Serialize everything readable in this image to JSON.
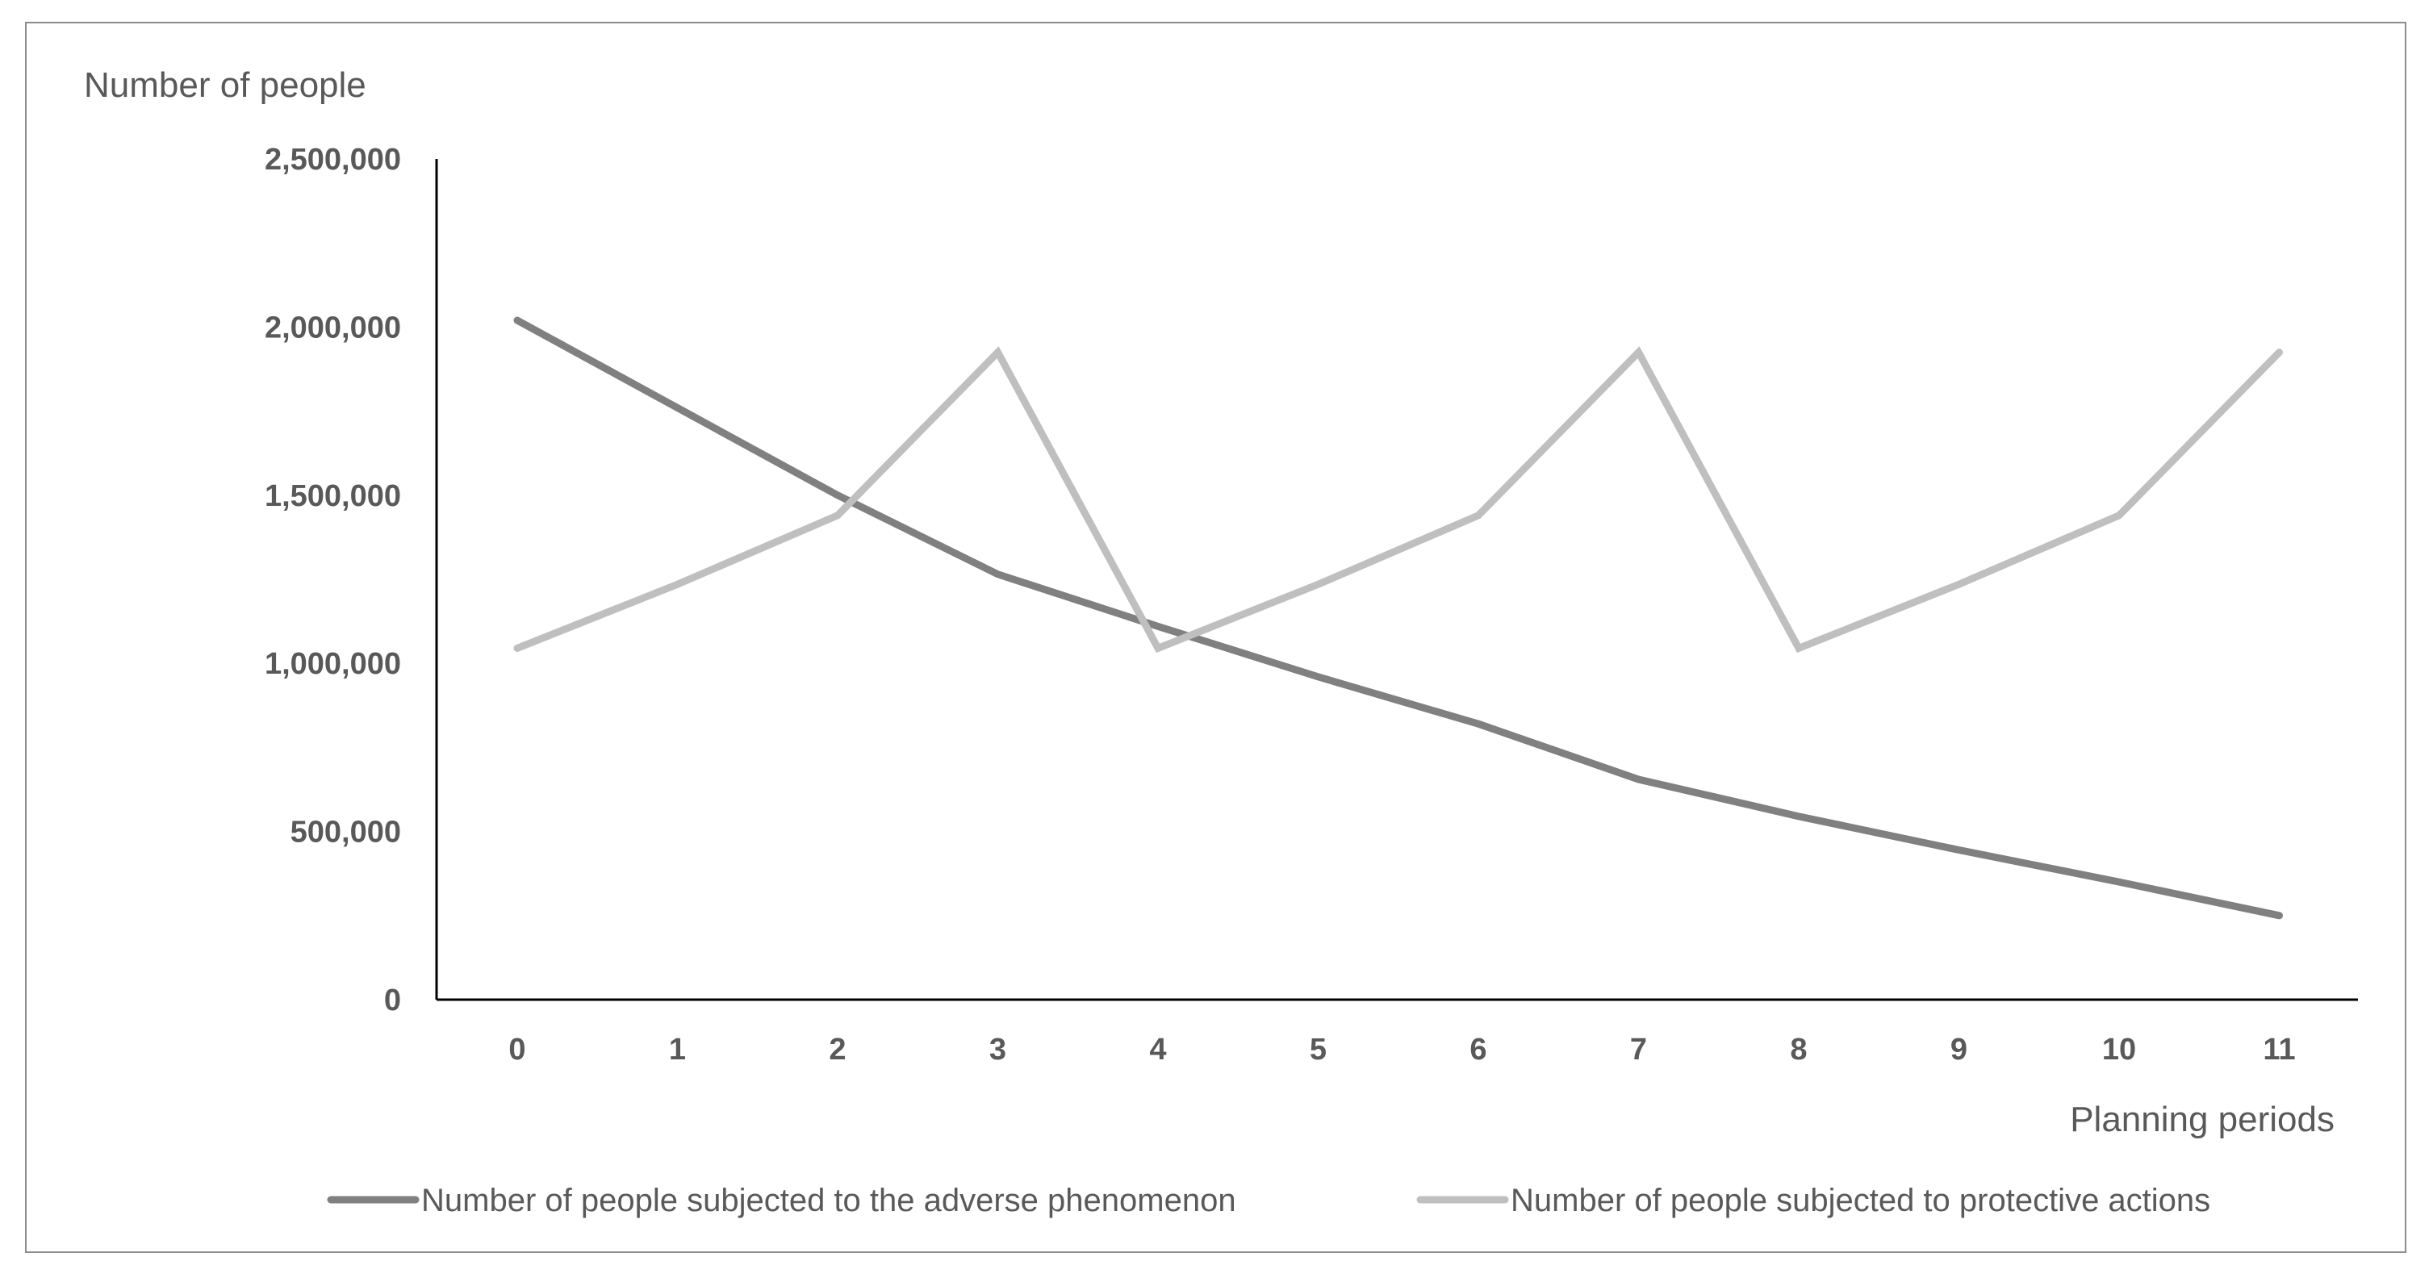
{
  "chart_data": {
    "type": "line",
    "title": "",
    "xlabel": "Planning periods",
    "ylabel": "Number of people",
    "x": [
      0,
      1,
      2,
      3,
      4,
      5,
      6,
      7,
      8,
      9,
      10,
      11
    ],
    "x_tick_labels": [
      "0",
      "1",
      "2",
      "3",
      "4",
      "5",
      "6",
      "7",
      "8",
      "9",
      "10",
      "11"
    ],
    "ylim": [
      0,
      2500000
    ],
    "y_ticks": [
      0,
      500000,
      1000000,
      1500000,
      2000000,
      2500000
    ],
    "y_tick_labels": [
      "0",
      "500,000",
      "1,000,000",
      "1,500,000",
      "2,000,000",
      "2,500,000"
    ],
    "grid": false,
    "legend_position": "bottom",
    "series": [
      {
        "name": "Number of people subjected to the adverse phenomenon",
        "color": "#808080",
        "values": [
          2020000,
          1760000,
          1500000,
          1265000,
          1110000,
          960000,
          820000,
          655000,
          545000,
          445000,
          350000,
          250000
        ]
      },
      {
        "name": "Number of people subjected to protective actions",
        "color": "#bfbfbf",
        "values": [
          1045000,
          1235000,
          1440000,
          1925000,
          1045000,
          1235000,
          1440000,
          1925000,
          1045000,
          1235000,
          1440000,
          1925000
        ]
      }
    ]
  }
}
